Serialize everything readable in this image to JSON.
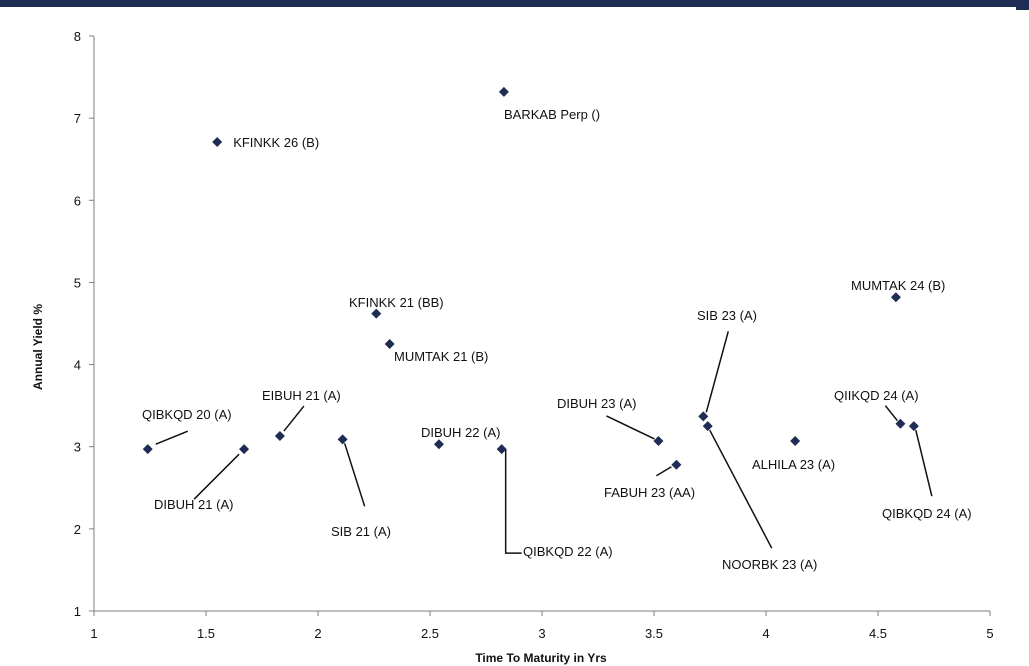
{
  "chart_data": {
    "type": "scatter",
    "title": "",
    "xlabel": "Time To Maturity in Yrs",
    "ylabel": "Annual Yield %",
    "xlim": [
      1,
      5
    ],
    "ylim": [
      1,
      8
    ],
    "xticks": [
      "1",
      "1.5",
      "2",
      "2.5",
      "3",
      "3.5",
      "4",
      "4.5",
      "5"
    ],
    "yticks": [
      "1",
      "2",
      "3",
      "4",
      "5",
      "6",
      "7",
      "8"
    ],
    "grid": false,
    "legend": "none",
    "marker_color": "#1f2d54",
    "points": [
      {
        "x": 1.24,
        "y": 2.97,
        "label": "QIBKQD 20 (A)"
      },
      {
        "x": 1.55,
        "y": 6.71,
        "label": "KFINKK 26 (B)"
      },
      {
        "x": 1.67,
        "y": 2.97,
        "label": "DIBUH 21 (A)"
      },
      {
        "x": 1.83,
        "y": 3.13,
        "label": "EIBUH 21 (A)"
      },
      {
        "x": 2.11,
        "y": 3.09,
        "label": "SIB 21 (A)"
      },
      {
        "x": 2.26,
        "y": 4.62,
        "label": "KFINKK 21 (BB)"
      },
      {
        "x": 2.32,
        "y": 4.25,
        "label": "MUMTAK 21 (B)"
      },
      {
        "x": 2.54,
        "y": 3.03,
        "label": "DIBUH 22 (A)"
      },
      {
        "x": 2.82,
        "y": 2.97,
        "label": "QIBKQD 22 (A)"
      },
      {
        "x": 2.83,
        "y": 7.32,
        "label": "BARKAB Perp ()"
      },
      {
        "x": 3.52,
        "y": 3.07,
        "label": "DIBUH 23 (A)"
      },
      {
        "x": 3.6,
        "y": 2.78,
        "label": "FABUH 23 (AA)"
      },
      {
        "x": 3.72,
        "y": 3.37,
        "label": "SIB 23 (A)"
      },
      {
        "x": 3.74,
        "y": 3.25,
        "label": "NOORBK 23 (A)"
      },
      {
        "x": 4.13,
        "y": 3.07,
        "label": "ALHILA 23 (A)"
      },
      {
        "x": 4.58,
        "y": 4.82,
        "label": "MUMTAK 24 (B)"
      },
      {
        "x": 4.6,
        "y": 3.28,
        "label": "QIIKQD 24 (A)"
      },
      {
        "x": 4.66,
        "y": 3.25,
        "label": "QIBKQD 24 (A)"
      }
    ]
  }
}
